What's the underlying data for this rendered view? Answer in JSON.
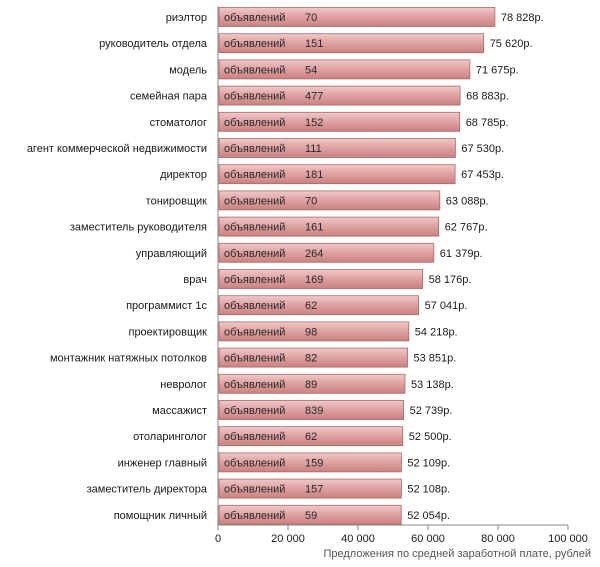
{
  "chart_data": {
    "type": "bar",
    "orientation": "horizontal",
    "xlabel": "Предложения по средней заработной плате, рублей",
    "xlim": [
      0,
      100000
    ],
    "x_ticks": [
      0,
      20000,
      40000,
      60000,
      80000,
      100000
    ],
    "x_tick_labels": [
      "0",
      "20 000",
      "40 000",
      "60 000",
      "80 000",
      "100 000"
    ],
    "bar_prefix": "объявлений",
    "categories": [
      "риэлтор",
      "руководитель отдела",
      "модель",
      "семейная пара",
      "стоматолог",
      "агент коммерческой недвижимости",
      "директор",
      "тонировщик",
      "заместитель руководителя",
      "управляющий",
      "врач",
      "программист 1с",
      "проектировщик",
      "монтажник натяжных потолков",
      "невролог",
      "массажист",
      "отоларинголог",
      "инженер главный",
      "заместитель директора",
      "помощник личный"
    ],
    "values": [
      78828,
      75620,
      71675,
      68883,
      68785,
      67530,
      67453,
      63088,
      62767,
      61379,
      58176,
      57041,
      54218,
      53851,
      53138,
      52739,
      52500,
      52109,
      52108,
      52054
    ],
    "value_labels": [
      "78 828р.",
      "75 620р.",
      "71 675р.",
      "68 883р.",
      "68 785р.",
      "67 530р.",
      "67 453р.",
      "63 088р.",
      "62 767р.",
      "61 379р.",
      "58 176р.",
      "57 041р.",
      "54 218р.",
      "53 851р.",
      "53 138р.",
      "52 739р.",
      "52 500р.",
      "52 109р.",
      "52 108р.",
      "52 054р."
    ],
    "ad_counts": [
      "70",
      "151",
      "54",
      "477",
      "152",
      "111",
      "181",
      "70",
      "161",
      "264",
      "169",
      "62",
      "98",
      "82",
      "89",
      "839",
      "62",
      "159",
      "157",
      "59"
    ],
    "grid": false,
    "bar_color": "#d99594",
    "bar_edge_color": "#b06666"
  }
}
